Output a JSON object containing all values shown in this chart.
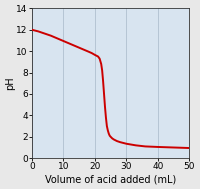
{
  "title": "",
  "xlabel": "Volume of acid added (mL)",
  "ylabel": "pH",
  "xlim": [
    0,
    50
  ],
  "ylim": [
    0,
    14
  ],
  "xticks": [
    0,
    10,
    20,
    30,
    40,
    50
  ],
  "yticks": [
    0,
    2,
    4,
    6,
    8,
    10,
    12,
    14
  ],
  "line_color": "#cc0000",
  "bg_color": "#d8e4f0",
  "fig_color": "#e8e8e8",
  "grid_color": "#b0bfcf",
  "curve_x": [
    0,
    2,
    4,
    6,
    8,
    10,
    12,
    14,
    16,
    18,
    19,
    20,
    21,
    21.5,
    22,
    22.3,
    22.6,
    22.9,
    23.2,
    23.5,
    23.8,
    24.1,
    24.4,
    24.7,
    25,
    25.5,
    26,
    27,
    28,
    30,
    33,
    36,
    40,
    45,
    50
  ],
  "curve_y": [
    12.0,
    11.85,
    11.65,
    11.45,
    11.2,
    10.95,
    10.7,
    10.45,
    10.2,
    9.95,
    9.82,
    9.65,
    9.5,
    9.3,
    8.8,
    8.2,
    7.2,
    6.0,
    4.8,
    3.8,
    3.0,
    2.6,
    2.3,
    2.1,
    2.0,
    1.85,
    1.75,
    1.6,
    1.5,
    1.35,
    1.2,
    1.1,
    1.05,
    1.0,
    0.95
  ],
  "xlabel_fontsize": 7.0,
  "ylabel_fontsize": 7.0,
  "tick_fontsize": 6.5,
  "line_width": 1.4
}
